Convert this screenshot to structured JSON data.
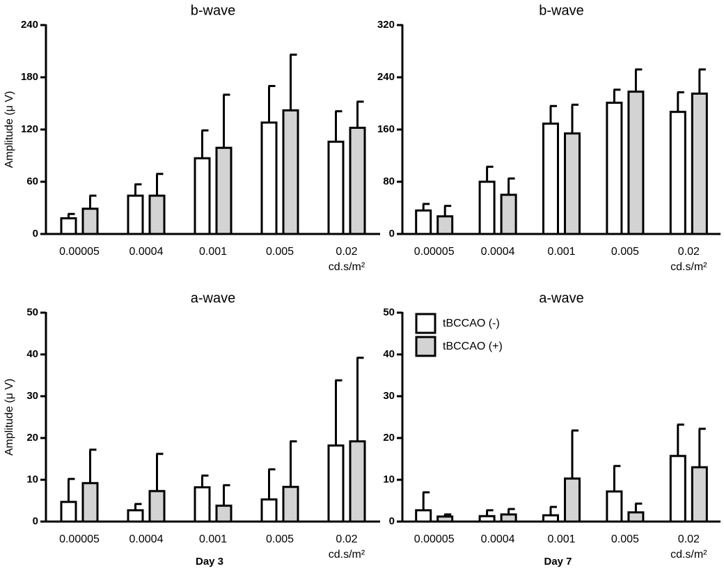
{
  "chart_data": [
    {
      "type": "bar",
      "title": "b-wave",
      "y_label": "Amplitude (μ V)",
      "categories": [
        "0.00005",
        "0.0004",
        "0.001",
        "0.005",
        "0.02"
      ],
      "x_unit": "cd.s/m²",
      "ylim": [
        0,
        240
      ],
      "yticks": [
        0,
        60,
        120,
        180,
        240
      ],
      "series": [
        {
          "color": "#ffffff",
          "values": [
            18,
            44,
            87,
            128,
            106
          ],
          "errors": [
            5,
            13,
            32,
            42,
            35
          ]
        },
        {
          "color": "#d3d3d3",
          "values": [
            29,
            44,
            99,
            142,
            122
          ],
          "errors": [
            15,
            25,
            61,
            64,
            30
          ]
        }
      ]
    },
    {
      "type": "bar",
      "title": "b-wave",
      "categories": [
        "0.00005",
        "0.0004",
        "0.001",
        "0.005",
        "0.02"
      ],
      "x_unit": "cd.s/m²",
      "ylim": [
        0,
        320
      ],
      "yticks": [
        0,
        80,
        160,
        240,
        320
      ],
      "series": [
        {
          "color": "#ffffff",
          "values": [
            36,
            80,
            169,
            201,
            187
          ],
          "errors": [
            10,
            23,
            27,
            20,
            30
          ]
        },
        {
          "color": "#d3d3d3",
          "values": [
            27,
            60,
            154,
            218,
            215
          ],
          "errors": [
            16,
            25,
            44,
            34,
            37
          ]
        }
      ]
    },
    {
      "type": "bar",
      "title": "a-wave",
      "y_label": "Amplitude (μ V)",
      "x_label": "Day 3",
      "categories": [
        "0.00005",
        "0.0004",
        "0.001",
        "0.005",
        "0.02"
      ],
      "x_unit": "cd.s/m²",
      "ylim": [
        0,
        50
      ],
      "yticks": [
        0,
        10,
        20,
        30,
        40,
        50
      ],
      "series": [
        {
          "color": "#ffffff",
          "values": [
            4.7,
            2.7,
            8.2,
            5.3,
            18.2
          ],
          "errors": [
            5.5,
            1.5,
            2.8,
            7.2,
            15.6
          ]
        },
        {
          "color": "#d3d3d3",
          "values": [
            9.2,
            7.3,
            3.8,
            8.3,
            19.2
          ],
          "errors": [
            8,
            8.9,
            4.9,
            10.9,
            20
          ]
        }
      ]
    },
    {
      "type": "bar",
      "title": "a-wave",
      "x_label": "Day 7",
      "legend": "upper-left",
      "categories": [
        "0.00005",
        "0.0004",
        "0.001",
        "0.005",
        "0.02"
      ],
      "x_unit": "cd.s/m²",
      "ylim": [
        0,
        50
      ],
      "yticks": [
        0,
        10,
        20,
        30,
        40,
        50
      ],
      "series": [
        {
          "name": "tBCCAO (-)",
          "color": "#ffffff",
          "values": [
            2.7,
            1.3,
            1.5,
            7.2,
            15.7
          ],
          "errors": [
            4.3,
            1.4,
            2,
            6.1,
            7.5
          ]
        },
        {
          "name": "tBCCAO (+)",
          "color": "#d3d3d3",
          "values": [
            1.2,
            1.7,
            10.3,
            2.2,
            13
          ],
          "errors": [
            0.5,
            1.3,
            11.5,
            2.1,
            9.2
          ]
        }
      ]
    }
  ]
}
